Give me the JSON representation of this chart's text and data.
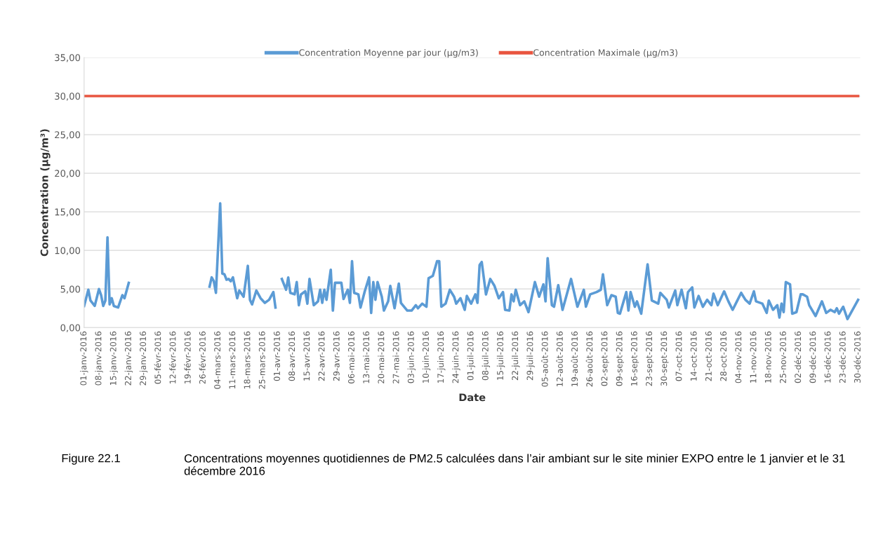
{
  "chart_data": {
    "type": "line",
    "xlabel": "Date",
    "ylabel": "Concentration (µg/m³)",
    "annotations": [
      "Figure 22.1",
      "Concentrations moyennes quotidiennes de PM2.5 calculées dans l’air ambiant sur le site minier EXPO entre le 1 janvier et le 31 décembre 2016"
    ],
    "legend": "top",
    "grid": "y",
    "marker": "none",
    "line_style": "solid",
    "ylim": [
      0,
      35
    ],
    "yticks": [
      {
        "value": 0,
        "label": "0,00"
      },
      {
        "value": 5,
        "label": "5,00"
      },
      {
        "value": 10,
        "label": "10,00"
      },
      {
        "value": 15,
        "label": "15,00"
      },
      {
        "value": 20,
        "label": "20,00"
      },
      {
        "value": 25,
        "label": "25,00"
      },
      {
        "value": 30,
        "label": "30,00"
      },
      {
        "value": 35,
        "label": "35,00"
      }
    ],
    "xlim": [
      "2016-01-01",
      "2016-12-31"
    ],
    "xticks": [
      {
        "value": "2016-01-01",
        "label": "01-janv-2016"
      },
      {
        "value": "2016-01-08",
        "label": "08-janv-2016"
      },
      {
        "value": "2016-01-15",
        "label": "15-janv-2016"
      },
      {
        "value": "2016-01-22",
        "label": "22-janv-2016"
      },
      {
        "value": "2016-01-29",
        "label": "29-janv-2016"
      },
      {
        "value": "2016-02-05",
        "label": "05-févr-2016"
      },
      {
        "value": "2016-02-12",
        "label": "12-févr-2016"
      },
      {
        "value": "2016-02-19",
        "label": "19-févr-2016"
      },
      {
        "value": "2016-02-26",
        "label": "26-févr-2016"
      },
      {
        "value": "2016-03-04",
        "label": "04-mars-2016"
      },
      {
        "value": "2016-03-11",
        "label": "11-mars-2016"
      },
      {
        "value": "2016-03-18",
        "label": "18-mars-2016"
      },
      {
        "value": "2016-03-25",
        "label": "25-mars-2016"
      },
      {
        "value": "2016-04-01",
        "label": "01-avr-2016"
      },
      {
        "value": "2016-04-08",
        "label": "08-avr-2016"
      },
      {
        "value": "2016-04-15",
        "label": "15-avr-2016"
      },
      {
        "value": "2016-04-22",
        "label": "22-avr-2016"
      },
      {
        "value": "2016-04-29",
        "label": "29-avr-2016"
      },
      {
        "value": "2016-05-06",
        "label": "06-mai-2016"
      },
      {
        "value": "2016-05-13",
        "label": "13-mai-2016"
      },
      {
        "value": "2016-05-20",
        "label": "20-mai-2016"
      },
      {
        "value": "2016-05-27",
        "label": "27-mai-2016"
      },
      {
        "value": "2016-06-03",
        "label": "03-juin-2016"
      },
      {
        "value": "2016-06-10",
        "label": "10-juin-2016"
      },
      {
        "value": "2016-06-17",
        "label": "17-juin-2016"
      },
      {
        "value": "2016-06-24",
        "label": "24-juin-2016"
      },
      {
        "value": "2016-07-01",
        "label": "01-juil-2016"
      },
      {
        "value": "2016-07-08",
        "label": "08-juil-2016"
      },
      {
        "value": "2016-07-15",
        "label": "15-juil-2016"
      },
      {
        "value": "2016-07-22",
        "label": "22-juil-2016"
      },
      {
        "value": "2016-07-29",
        "label": "29-juil-2016"
      },
      {
        "value": "2016-08-05",
        "label": "05-août-2016"
      },
      {
        "value": "2016-08-12",
        "label": "12-août-2016"
      },
      {
        "value": "2016-08-19",
        "label": "19-août-2016"
      },
      {
        "value": "2016-08-26",
        "label": "26-août-2016"
      },
      {
        "value": "2016-09-02",
        "label": "02-sept-2016"
      },
      {
        "value": "2016-09-09",
        "label": "09-sept-2016"
      },
      {
        "value": "2016-09-16",
        "label": "16-sept-2016"
      },
      {
        "value": "2016-09-23",
        "label": "23-sept-2016"
      },
      {
        "value": "2016-09-30",
        "label": "30-sept-2016"
      },
      {
        "value": "2016-10-07",
        "label": "07-oct-2016"
      },
      {
        "value": "2016-10-14",
        "label": "14-oct-2016"
      },
      {
        "value": "2016-10-21",
        "label": "21-oct-2016"
      },
      {
        "value": "2016-10-28",
        "label": "28-oct-2016"
      },
      {
        "value": "2016-11-04",
        "label": "04-nov-2016"
      },
      {
        "value": "2016-11-11",
        "label": "11-nov-2016"
      },
      {
        "value": "2016-11-18",
        "label": "18-nov-2016"
      },
      {
        "value": "2016-11-25",
        "label": "25-nov-2016"
      },
      {
        "value": "2016-12-02",
        "label": "02-déc-2016"
      },
      {
        "value": "2016-12-09",
        "label": "09-déc-2016"
      },
      {
        "value": "2016-12-16",
        "label": "16-déc-2016"
      },
      {
        "value": "2016-12-23",
        "label": "23-déc-2016"
      },
      {
        "value": "2016-12-30",
        "label": "30-déc-2016"
      }
    ],
    "series": [
      {
        "name": "Concentration Moyenne par jour (µg/m3)",
        "color": "#5b9bd5",
        "x": [
          "2016-01-01",
          "2016-01-03",
          "2016-01-04",
          "2016-01-06",
          "2016-01-08",
          "2016-01-09",
          "2016-01-10",
          "2016-01-11",
          "2016-01-12",
          "2016-01-13",
          "2016-01-14",
          "2016-01-15",
          "2016-01-17",
          "2016-01-19",
          "2016-01-20",
          "2016-01-22",
          "2016-02-10",
          "2016-02-29",
          "2016-03-01",
          "2016-03-02",
          "2016-03-03",
          "2016-03-05",
          "2016-03-06",
          "2016-03-07",
          "2016-03-08",
          "2016-03-09",
          "2016-03-10",
          "2016-03-11",
          "2016-03-13",
          "2016-03-14",
          "2016-03-16",
          "2016-03-18",
          "2016-03-19",
          "2016-03-20",
          "2016-03-22",
          "2016-03-24",
          "2016-03-26",
          "2016-03-28",
          "2016-03-30",
          "2016-03-31",
          "2016-04-01",
          "2016-04-03",
          "2016-04-05",
          "2016-04-06",
          "2016-04-07",
          "2016-04-09",
          "2016-04-10",
          "2016-04-11",
          "2016-04-12",
          "2016-04-14",
          "2016-04-15",
          "2016-04-16",
          "2016-04-18",
          "2016-04-20",
          "2016-04-21",
          "2016-04-22",
          "2016-04-23",
          "2016-04-24",
          "2016-04-26",
          "2016-04-27",
          "2016-04-28",
          "2016-05-01",
          "2016-05-02",
          "2016-05-04",
          "2016-05-05",
          "2016-05-06",
          "2016-05-07",
          "2016-05-09",
          "2016-05-10",
          "2016-05-12",
          "2016-05-14",
          "2016-05-15",
          "2016-05-16",
          "2016-05-17",
          "2016-05-18",
          "2016-05-20",
          "2016-05-21",
          "2016-05-23",
          "2016-05-24",
          "2016-05-26",
          "2016-05-28",
          "2016-05-29",
          "2016-06-01",
          "2016-06-03",
          "2016-06-05",
          "2016-06-06",
          "2016-06-08",
          "2016-06-10",
          "2016-06-11",
          "2016-06-13",
          "2016-06-15",
          "2016-06-16",
          "2016-06-17",
          "2016-06-19",
          "2016-06-21",
          "2016-06-23",
          "2016-06-24",
          "2016-06-26",
          "2016-06-28",
          "2016-06-29",
          "2016-07-01",
          "2016-07-03",
          "2016-07-04",
          "2016-07-05",
          "2016-07-06",
          "2016-07-08",
          "2016-07-10",
          "2016-07-12",
          "2016-07-14",
          "2016-07-16",
          "2016-07-17",
          "2016-07-19",
          "2016-07-20",
          "2016-07-21",
          "2016-07-22",
          "2016-07-24",
          "2016-07-26",
          "2016-07-28",
          "2016-07-31",
          "2016-08-02",
          "2016-08-04",
          "2016-08-05",
          "2016-08-06",
          "2016-08-08",
          "2016-08-09",
          "2016-08-11",
          "2016-08-13",
          "2016-08-17",
          "2016-08-20",
          "2016-08-23",
          "2016-08-24",
          "2016-08-26",
          "2016-08-29",
          "2016-08-31",
          "2016-09-01",
          "2016-09-03",
          "2016-09-05",
          "2016-09-07",
          "2016-09-08",
          "2016-09-09",
          "2016-09-12",
          "2016-09-13",
          "2016-09-14",
          "2016-09-16",
          "2016-09-17",
          "2016-09-19",
          "2016-09-22",
          "2016-09-24",
          "2016-09-27",
          "2016-09-28",
          "2016-10-01",
          "2016-10-02",
          "2016-10-05",
          "2016-10-06",
          "2016-10-08",
          "2016-10-10",
          "2016-10-11",
          "2016-10-13",
          "2016-10-14",
          "2016-10-16",
          "2016-10-18",
          "2016-10-20",
          "2016-10-22",
          "2016-10-23",
          "2016-10-25",
          "2016-10-28",
          "2016-10-30",
          "2016-11-01",
          "2016-11-03",
          "2016-11-05",
          "2016-11-07",
          "2016-11-09",
          "2016-11-11",
          "2016-11-12",
          "2016-11-15",
          "2016-11-17",
          "2016-11-18",
          "2016-11-20",
          "2016-11-22",
          "2016-11-23",
          "2016-11-24",
          "2016-11-25",
          "2016-11-26",
          "2016-11-28",
          "2016-11-29",
          "2016-12-01",
          "2016-12-03",
          "2016-12-04",
          "2016-12-06",
          "2016-12-07",
          "2016-12-10",
          "2016-12-13",
          "2016-12-15",
          "2016-12-17",
          "2016-12-19",
          "2016-12-20",
          "2016-12-21",
          "2016-12-23",
          "2016-12-25",
          "2016-12-30"
        ],
        "values": [
          2.8,
          4.9,
          3.5,
          2.8,
          5.0,
          4.2,
          2.8,
          3.5,
          11.7,
          3.0,
          3.8,
          2.8,
          2.6,
          4.2,
          3.8,
          5.8,
          null,
          5.3,
          6.5,
          6.0,
          4.5,
          16.1,
          7.0,
          6.9,
          6.2,
          6.3,
          6.0,
          6.5,
          3.8,
          4.8,
          4.0,
          8.0,
          3.6,
          3.0,
          4.8,
          3.8,
          3.2,
          3.6,
          4.6,
          2.6,
          null,
          6.3,
          4.9,
          6.5,
          4.5,
          4.3,
          5.9,
          2.9,
          4.3,
          4.7,
          3.1,
          6.3,
          2.9,
          3.4,
          4.9,
          3.2,
          4.9,
          3.6,
          7.5,
          2.2,
          5.8,
          5.8,
          3.7,
          4.9,
          3.2,
          8.6,
          4.5,
          4.3,
          2.6,
          4.7,
          6.5,
          1.9,
          5.9,
          3.6,
          5.9,
          4.0,
          2.2,
          3.4,
          5.4,
          2.5,
          5.7,
          3.2,
          2.2,
          2.2,
          2.9,
          2.5,
          3.1,
          2.7,
          6.4,
          6.7,
          8.6,
          8.6,
          2.7,
          3.1,
          4.9,
          4.0,
          3.1,
          3.8,
          2.3,
          4.1,
          3.1,
          4.3,
          3.2,
          8.1,
          8.5,
          4.3,
          6.3,
          5.4,
          3.8,
          4.6,
          2.3,
          2.2,
          4.3,
          3.4,
          4.9,
          2.9,
          3.4,
          2.0,
          5.9,
          4.0,
          5.6,
          3.4,
          9.0,
          2.9,
          2.7,
          5.5,
          2.3,
          6.3,
          2.7,
          4.9,
          2.7,
          4.3,
          4.6,
          4.9,
          6.9,
          2.9,
          4.2,
          4.0,
          1.9,
          1.8,
          4.6,
          2.2,
          4.6,
          2.7,
          3.4,
          1.8,
          8.2,
          3.5,
          3.1,
          4.5,
          3.6,
          2.6,
          4.8,
          2.9,
          4.9,
          2.5,
          4.6,
          5.2,
          2.6,
          4.1,
          2.7,
          3.6,
          2.9,
          4.4,
          2.9,
          4.7,
          3.4,
          2.3,
          3.4,
          4.5,
          3.6,
          3.1,
          4.7,
          3.4,
          3.1,
          1.9,
          3.5,
          2.3,
          2.9,
          1.3,
          3.1,
          2.0,
          5.9,
          5.6,
          1.8,
          2.0,
          4.3,
          4.3,
          4.0,
          2.9,
          1.5,
          3.4,
          1.9,
          2.3,
          2.0,
          2.5,
          1.8,
          2.7,
          1.1,
          3.6
        ]
      },
      {
        "name": "Concentration Maximale (µg/m3)",
        "color": "#e8553f",
        "x": [
          "2016-01-01",
          "2016-12-30"
        ],
        "values": [
          30,
          30
        ]
      }
    ]
  }
}
